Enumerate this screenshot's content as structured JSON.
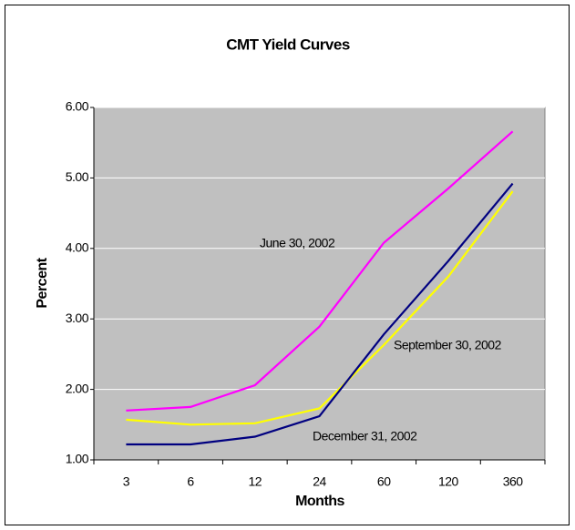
{
  "chart_data": {
    "type": "line",
    "title": "CMT Yield Curves",
    "x_label": "Months",
    "y_label": "Percent",
    "categories": [
      "3",
      "6",
      "12",
      "24",
      "60",
      "120",
      "360"
    ],
    "series": [
      {
        "name": "June 30, 2002",
        "color": "#ff00ff",
        "values": [
          1.7,
          1.75,
          2.06,
          2.89,
          4.08,
          4.85,
          5.66
        ]
      },
      {
        "name": "September 30, 2002",
        "color": "#ffff00",
        "values": [
          1.57,
          1.5,
          1.52,
          1.73,
          2.63,
          3.6,
          4.81
        ]
      },
      {
        "name": "December 31, 2002",
        "color": "#000080",
        "values": [
          1.22,
          1.22,
          1.33,
          1.62,
          2.78,
          3.82,
          4.92
        ]
      }
    ],
    "ylim": [
      1,
      6
    ],
    "yticks": [
      {
        "value": 1,
        "label": "1.00"
      },
      {
        "value": 2,
        "label": "2.00"
      },
      {
        "value": 3,
        "label": "3.00"
      },
      {
        "value": 4,
        "label": "4.00"
      },
      {
        "value": 5,
        "label": "5.00"
      },
      {
        "value": 6,
        "label": "6.00"
      }
    ],
    "grid": true
  }
}
